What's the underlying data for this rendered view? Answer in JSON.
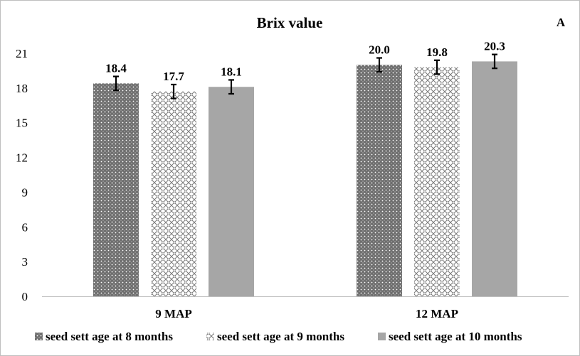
{
  "chart_data": {
    "type": "bar",
    "title": "Brix value",
    "panel_label": "A",
    "categories": [
      "9 MAP",
      "12 MAP"
    ],
    "series": [
      {
        "name": "seed sett age at 8 months",
        "values": [
          18.4,
          20.0
        ],
        "errors": [
          0.6,
          0.6
        ],
        "labels": [
          "18.4",
          "20.0"
        ],
        "pattern": "dots",
        "color": "#7a7a7a"
      },
      {
        "name": "seed sett age at 9 months",
        "values": [
          17.7,
          19.8
        ],
        "errors": [
          0.6,
          0.6
        ],
        "labels": [
          "17.7",
          "19.8"
        ],
        "pattern": "crosshatch",
        "color": "#8c8c8c"
      },
      {
        "name": "seed sett age at 10 months",
        "values": [
          18.1,
          20.3
        ],
        "errors": [
          0.6,
          0.6
        ],
        "labels": [
          "18.1",
          "20.3"
        ],
        "pattern": "solid",
        "color": "#a6a6a6"
      }
    ],
    "y_ticks": [
      "0",
      "3",
      "6",
      "9",
      "12",
      "15",
      "18",
      "21"
    ],
    "ylim": [
      0,
      21
    ],
    "grid": false,
    "legend_position": "bottom"
  }
}
